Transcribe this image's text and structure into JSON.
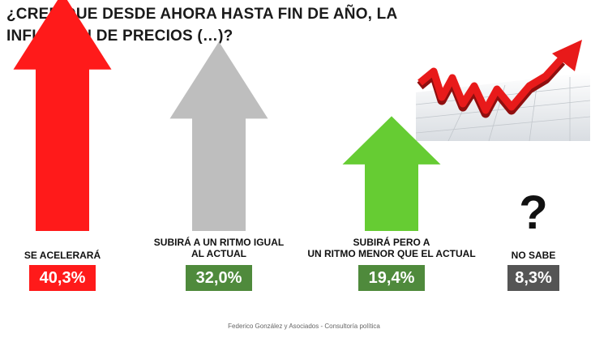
{
  "title": "¿CREE QUE DESDE AHORA HASTA FIN DE AÑO, LA INFLACIÓN DE PRECIOS (…)?",
  "footer": "Federico González y Asociados - Consultoría política",
  "icons": {
    "decoration": "rising-red-arrow-graph",
    "unknown": "question-mark-icon"
  },
  "chart_data": {
    "type": "bar",
    "categories": [
      "SE ACELERARÁ",
      "SUBIRÁ A UN RITMO IGUAL AL ACTUAL",
      "SUBIRÁ PERO A UN RITMO MENOR QUE EL ACTUAL",
      "NO SABE"
    ],
    "category_lines": [
      [
        "SE ACELERARÁ"
      ],
      [
        "SUBIRÁ A UN RITMO IGUAL",
        "AL ACTUAL"
      ],
      [
        "SUBIRÁ PERO A",
        "UN RITMO MENOR QUE EL ACTUAL"
      ],
      [
        "NO SABE"
      ]
    ],
    "values": [
      40.3,
      32.0,
      19.4,
      8.3
    ],
    "value_labels": [
      "40,3%",
      "32,0%",
      "19,4%",
      "8,3%"
    ],
    "colors": [
      "#ff1a1a",
      "#bebebe",
      "#66cc33",
      "#c8c8c8"
    ],
    "badge_colors": [
      "#ff1a1a",
      "#4f8a3c",
      "#4f8a3c",
      "#555555"
    ],
    "unit": "%"
  }
}
